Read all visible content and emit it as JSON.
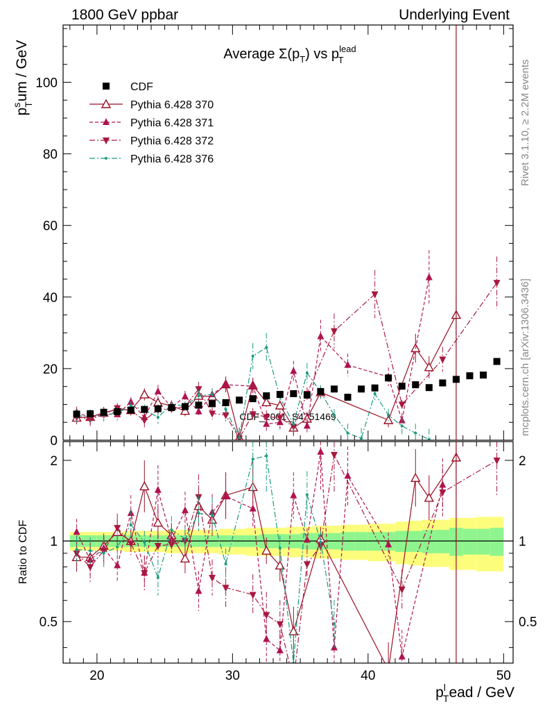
{
  "header": {
    "left": "1800 GeV ppbar",
    "right": "Underlying Event",
    "side_top": "Rivet 3.1.10, ≥ 2.2M events",
    "side_bottom": "mcplots.cern.ch [arXiv:1306.3436]",
    "watermark": "CDF_2001_S4751469"
  },
  "chart_data": [
    {
      "type": "scatter",
      "title": "Average Σ(p_T) vs p_T^lead",
      "ylabel": "p_T^sum / GeV",
      "xlim": [
        17.5,
        50.7
      ],
      "ylim": [
        0,
        116
      ],
      "x_ticks": [
        20,
        30,
        40,
        50
      ],
      "y_ticks": [
        0,
        20,
        40,
        60,
        80,
        100
      ],
      "legend_position": "top-left",
      "series": [
        {
          "name": "CDF",
          "color": "#000000",
          "marker": "square",
          "style": "none",
          "x": [
            18.5,
            19.5,
            20.5,
            21.5,
            22.5,
            23.5,
            24.5,
            25.5,
            26.5,
            27.5,
            28.5,
            29.5,
            30.5,
            31.5,
            32.5,
            33.5,
            34.5,
            35.5,
            36.5,
            37.5,
            38.5,
            39.5,
            40.5,
            41.5,
            42.5,
            43.5,
            44.5,
            45.5,
            46.5,
            47.5,
            48.5,
            49.5
          ],
          "y": [
            7.3,
            7.4,
            7.8,
            8.0,
            8.4,
            8.6,
            8.8,
            9.1,
            9.4,
            9.8,
            10.2,
            10.5,
            11.2,
            11.6,
            12.4,
            12.8,
            13.0,
            12.6,
            13.6,
            14.3,
            12.0,
            14.3,
            14.6,
            17.4,
            15.1,
            15.5,
            14.7,
            16.0,
            17.0,
            18.0,
            18.2,
            22.0
          ]
        },
        {
          "name": "Pythia 6.428 370",
          "color": "#9a0f25",
          "marker": "triangle-open",
          "style": "solid",
          "x": [
            18.5,
            19.5,
            20.5,
            21.5,
            22.5,
            23.5,
            24.5,
            25.5,
            26.5,
            27.5,
            28.5,
            29.5,
            30.5,
            31.5,
            32.5,
            33.5,
            34.5,
            35.5,
            36.5,
            41.5,
            43.5,
            44.5,
            46.5
          ],
          "y": [
            6.3,
            6.5,
            7.7,
            8.6,
            8.4,
            12.8,
            10.5,
            9.6,
            8.2,
            12.4,
            12.2,
            15.6,
            0.7,
            15.3,
            10.6,
            9.7,
            3.5,
            6.0,
            13.4,
            5.6,
            25.7,
            20.4,
            35.0
          ]
        },
        {
          "name": "Pythia 6.428 371",
          "color": "#b0124f",
          "marker": "triangle-up",
          "style": "dashed",
          "x": [
            18.5,
            19.5,
            20.5,
            21.5,
            22.5,
            23.5,
            24.5,
            25.5,
            26.5,
            27.5,
            28.5,
            29.5,
            31.5,
            32.5,
            33.5,
            34.5,
            35.5,
            36.5,
            38.5,
            41.5,
            42.5,
            44.5
          ],
          "y": [
            7.8,
            6.3,
            7.3,
            7.2,
            10.7,
            6.4,
            13.6,
            9.2,
            12.2,
            8.0,
            12.8,
            15.5,
            15.1,
            4.5,
            5.0,
            19.3,
            4.0,
            29.0,
            21.0,
            17.7,
            5.5,
            45.5
          ]
        },
        {
          "name": "Pythia 6.428 372",
          "color": "#a8183f",
          "marker": "triangle-down",
          "style": "dashdot",
          "x": [
            18.5,
            19.5,
            20.5,
            21.5,
            22.5,
            23.5,
            24.5,
            25.5,
            26.5,
            27.5,
            28.5,
            29.5,
            30.5,
            31.5,
            32.5,
            33.5,
            34.5,
            35.5,
            37.5,
            40.5,
            42.5,
            45.5,
            49.5
          ],
          "y": [
            6.5,
            5.9,
            7.2,
            9.0,
            8.2,
            5.6,
            8.5,
            8.8,
            9.4,
            14.3,
            7.5,
            7.0,
            0.5,
            7.3,
            6.5,
            6.3,
            3.8,
            13.0,
            30.5,
            40.8,
            10.0,
            22.6,
            44.0
          ]
        },
        {
          "name": "Pythia 6.428 376",
          "color": "#1b9a80",
          "marker": "dot",
          "style": "dashdot",
          "x": [
            18.5,
            19.5,
            20.5,
            21.5,
            22.5,
            23.5,
            24.5,
            25.5,
            26.5,
            27.5,
            28.5,
            29.5,
            30.5,
            31.5,
            32.5,
            33.5,
            34.5,
            35.5,
            36.5,
            37.5,
            38.5,
            39.5,
            40.5,
            41.5,
            42.5,
            43.5,
            44.5
          ],
          "y": [
            6.8,
            6.8,
            7.0,
            7.6,
            9.6,
            8.5,
            6.4,
            10.0,
            9.6,
            12.4,
            12.8,
            8.6,
            0.7,
            23.5,
            25.9,
            12.0,
            4.5,
            18.8,
            13.5,
            7.0,
            2.0,
            0.5,
            13.0,
            7.0,
            4.0,
            2.0,
            0.2
          ]
        }
      ]
    },
    {
      "type": "scatter",
      "xlabel": "p_T^lead / GeV",
      "ylabel": "Ratio to CDF",
      "xlim": [
        17.5,
        50.7
      ],
      "ylim": [
        0.35,
        2.35
      ],
      "x_ticks": [
        20,
        30,
        40,
        50
      ],
      "y_ticks": [
        0.5,
        1,
        2
      ],
      "band_colors": {
        "inner": "#8ef58e",
        "outer": "#fdfd7c"
      },
      "bands": {
        "inner": [
          0.05,
          0.05,
          0.05,
          0.05,
          0.05,
          0.05,
          0.05,
          0.05,
          0.05,
          0.05,
          0.05,
          0.05,
          0.05,
          0.05,
          0.06,
          0.06,
          0.06,
          0.07,
          0.07,
          0.07,
          0.08,
          0.08,
          0.08,
          0.08,
          0.09,
          0.09,
          0.1,
          0.1,
          0.12,
          0.11,
          0.11,
          0.12
        ],
        "outer": [
          0.08,
          0.08,
          0.08,
          0.08,
          0.09,
          0.09,
          0.09,
          0.1,
          0.1,
          0.1,
          0.1,
          0.11,
          0.11,
          0.12,
          0.12,
          0.12,
          0.13,
          0.13,
          0.14,
          0.14,
          0.15,
          0.15,
          0.16,
          0.16,
          0.18,
          0.19,
          0.2,
          0.2,
          0.22,
          0.22,
          0.23,
          0.23
        ]
      },
      "series": [
        {
          "name": "Pythia 6.428 370",
          "x": [
            18.5,
            19.5,
            20.5,
            21.5,
            22.5,
            23.5,
            24.5,
            25.5,
            26.5,
            27.5,
            28.5,
            29.5,
            31.5,
            32.5,
            33.5,
            34.5,
            36.5,
            41.5,
            43.5,
            44.5,
            46.5
          ],
          "y": [
            0.87,
            0.87,
            0.96,
            1.08,
            1.0,
            1.6,
            1.17,
            1.05,
            0.86,
            1.35,
            1.2,
            1.48,
            1.59,
            0.92,
            0.81,
            0.46,
            1.02,
            0.33,
            1.72,
            1.45,
            2.05
          ]
        },
        {
          "name": "Pythia 6.428 371",
          "x": [
            18.5,
            19.5,
            20.5,
            21.5,
            22.5,
            23.5,
            24.5,
            25.5,
            26.5,
            27.5,
            28.5,
            29.5,
            31.5,
            32.5,
            33.5,
            34.5,
            35.5,
            36.5,
            37.5,
            38.5,
            41.5,
            42.5,
            45.5
          ],
          "y": [
            1.08,
            0.85,
            0.94,
            0.81,
            1.27,
            0.76,
            1.55,
            1.01,
            1.3,
            0.65,
            1.28,
            1.47,
            1.32,
            0.43,
            0.39,
            1.48,
            1.01,
            2.15,
            0.4,
            1.75,
            0.97,
            0.37,
            1.62
          ]
        },
        {
          "name": "Pythia 6.428 372",
          "x": [
            18.5,
            19.5,
            20.5,
            21.5,
            22.5,
            23.5,
            24.5,
            25.5,
            26.5,
            27.5,
            28.5,
            29.5,
            31.5,
            32.5,
            33.5,
            34.5,
            35.5,
            36.5,
            37.5,
            42.5,
            45.5,
            49.5
          ],
          "y": [
            0.9,
            0.8,
            0.92,
            1.12,
            0.98,
            0.76,
            0.96,
            0.97,
            1.0,
            1.46,
            0.73,
            0.67,
            0.63,
            0.53,
            0.49,
            0.3,
            0.82,
            0.96,
            2.1,
            0.66,
            1.52,
            2.0
          ]
        },
        {
          "name": "Pythia 6.428 376",
          "x": [
            18.5,
            19.5,
            20.5,
            21.5,
            22.5,
            23.5,
            24.5,
            25.5,
            26.5,
            27.5,
            28.5,
            29.5,
            31.5,
            32.5,
            33.5,
            34.5,
            35.5,
            36.5,
            37.5
          ],
          "y": [
            0.93,
            0.92,
            0.9,
            0.95,
            1.15,
            0.99,
            0.73,
            1.1,
            1.02,
            1.27,
            1.25,
            0.82,
            2.02,
            2.08,
            0.94,
            0.35,
            1.49,
            0.99,
            0.49
          ]
        }
      ]
    }
  ]
}
